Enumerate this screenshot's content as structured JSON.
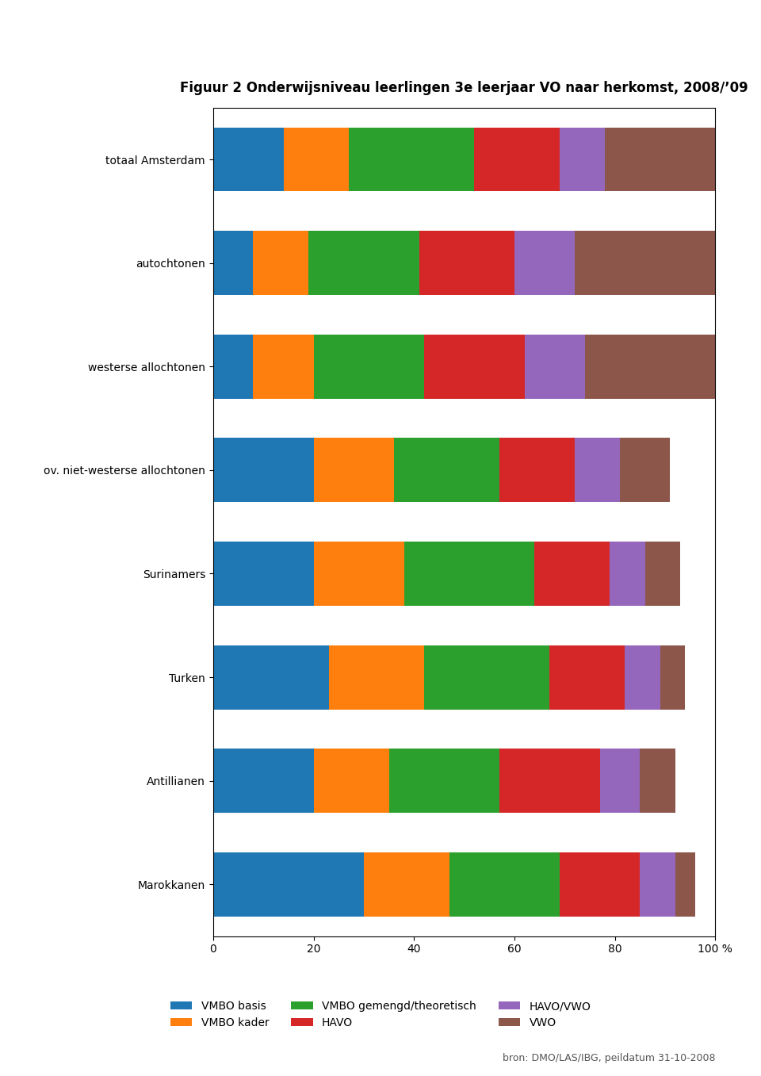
{
  "chart_data": {
    "type": "bar",
    "orientation": "horizontal",
    "stacked": true,
    "title": "Figuur 2 Onderwijsniveau leerlingen 3e leerjaar VO naar herkomst, 2008/’09",
    "categories": [
      "totaal Amsterdam",
      "autochtonen",
      "westerse allochtonen",
      "ov. niet-westerse allochtonen",
      "Surinamers",
      "Turken",
      "Antillianen",
      "Marokkanen"
    ],
    "series": [
      {
        "name": "VMBO basis",
        "values": [
          14,
          8,
          8,
          20,
          20,
          23,
          20,
          30
        ]
      },
      {
        "name": "VMBO kader",
        "values": [
          13,
          11,
          12,
          16,
          18,
          19,
          15,
          17
        ]
      },
      {
        "name": "VMBO gemengd/theoretisch",
        "values": [
          25,
          22,
          22,
          21,
          26,
          25,
          22,
          22
        ]
      },
      {
        "name": "HAVO",
        "values": [
          17,
          19,
          20,
          15,
          15,
          15,
          20,
          16
        ]
      },
      {
        "name": "HAVO/VWO",
        "values": [
          9,
          12,
          12,
          9,
          7,
          7,
          8,
          7
        ]
      },
      {
        "name": "VWO",
        "values": [
          22,
          28,
          26,
          10,
          7,
          5,
          7,
          4
        ]
      }
    ],
    "xlim": [
      0,
      100
    ],
    "xticks": [
      0,
      20,
      40,
      60,
      80,
      {
        "value": 100,
        "label": "100 %"
      }
    ],
    "grid": false,
    "legend": "lower center",
    "annotations": [
      "bron: DMO/LAS/IBG, peildatum 31-10-2008"
    ]
  }
}
